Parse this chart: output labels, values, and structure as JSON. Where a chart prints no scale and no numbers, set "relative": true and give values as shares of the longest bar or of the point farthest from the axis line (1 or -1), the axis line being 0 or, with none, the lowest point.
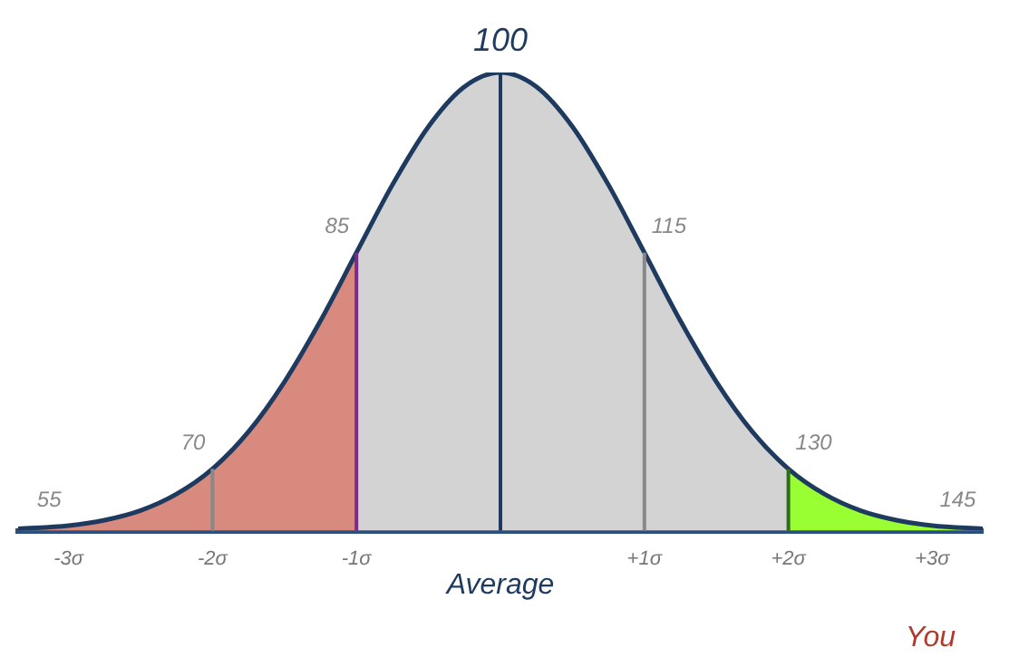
{
  "chart_data": {
    "type": "area",
    "relative": true,
    "xlim": [
      -3.35,
      3.35
    ],
    "xticks": [
      {
        "value": -3,
        "label": "-3σ"
      },
      {
        "value": -2,
        "label": "-2σ"
      },
      {
        "value": -1,
        "label": "-1σ"
      },
      {
        "value": 1,
        "label": "+1σ"
      },
      {
        "value": 2,
        "label": "+2σ"
      },
      {
        "value": 3,
        "label": "+3σ"
      }
    ],
    "grid": false,
    "legend": false,
    "line_style": "solid",
    "marker": "none",
    "series": [
      {
        "color": "#d98a7e",
        "x": [
          -3.35,
          -3,
          -2.75,
          -2.5,
          -2.25,
          -2,
          -1.75,
          -1.5,
          -1.25,
          -1
        ],
        "values": [
          0.004,
          0.011,
          0.023,
          0.044,
          0.08,
          0.135,
          0.216,
          0.325,
          0.458,
          0.607
        ]
      },
      {
        "color": "#d3d3d3",
        "x": [
          -1,
          -0.75,
          -0.5,
          -0.25,
          0,
          0.25,
          0.5,
          0.75,
          1,
          1.25,
          1.5,
          1.75,
          2
        ],
        "values": [
          0.607,
          0.755,
          0.882,
          0.969,
          1,
          0.969,
          0.882,
          0.755,
          0.607,
          0.458,
          0.325,
          0.216,
          0.135
        ]
      },
      {
        "color": "#99ff33",
        "x": [
          2,
          2.25,
          2.5,
          2.75,
          3,
          3.35
        ],
        "values": [
          0.135,
          0.08,
          0.044,
          0.023,
          0.011,
          0.004
        ]
      },
      {
        "type": "line",
        "color": "#1f3a5f",
        "x": [
          -3.35,
          -3,
          -2.75,
          -2.5,
          -2.25,
          -2,
          -1.75,
          -1.5,
          -1.25,
          -1,
          -0.75,
          -0.5,
          -0.25,
          0,
          0.25,
          0.5,
          0.75,
          1,
          1.25,
          1.5,
          1.75,
          2,
          2.25,
          2.5,
          2.75,
          3,
          3.35
        ],
        "values": [
          0.004,
          0.011,
          0.023,
          0.044,
          0.08,
          0.135,
          0.216,
          0.325,
          0.458,
          0.607,
          0.755,
          0.882,
          0.969,
          1,
          0.969,
          0.882,
          0.755,
          0.607,
          0.458,
          0.325,
          0.216,
          0.135,
          0.08,
          0.044,
          0.023,
          0.011,
          0.004
        ]
      }
    ],
    "ref_lines": [
      {
        "axis": "x",
        "value": -2,
        "color": "#888888"
      },
      {
        "axis": "x",
        "value": -1,
        "color": "#7a2a8a"
      },
      {
        "axis": "x",
        "value": 0,
        "color": "#1f3a5f"
      },
      {
        "axis": "x",
        "value": 1,
        "color": "#888888"
      },
      {
        "axis": "x",
        "value": 2,
        "color": "#2e6b1a"
      }
    ],
    "annotations": [
      {
        "text": "55",
        "x": -3,
        "y": 0.011
      },
      {
        "text": "70",
        "x": -2,
        "y": 0.135
      },
      {
        "text": "85",
        "x": -1,
        "y": 0.607
      },
      {
        "text": "100",
        "x": 0,
        "y": 1
      },
      {
        "text": "115",
        "x": 1,
        "y": 0.607
      },
      {
        "text": "130",
        "x": 2,
        "y": 0.135
      },
      {
        "text": "145",
        "x": 3,
        "y": 0.011
      },
      "Average",
      "You"
    ]
  }
}
